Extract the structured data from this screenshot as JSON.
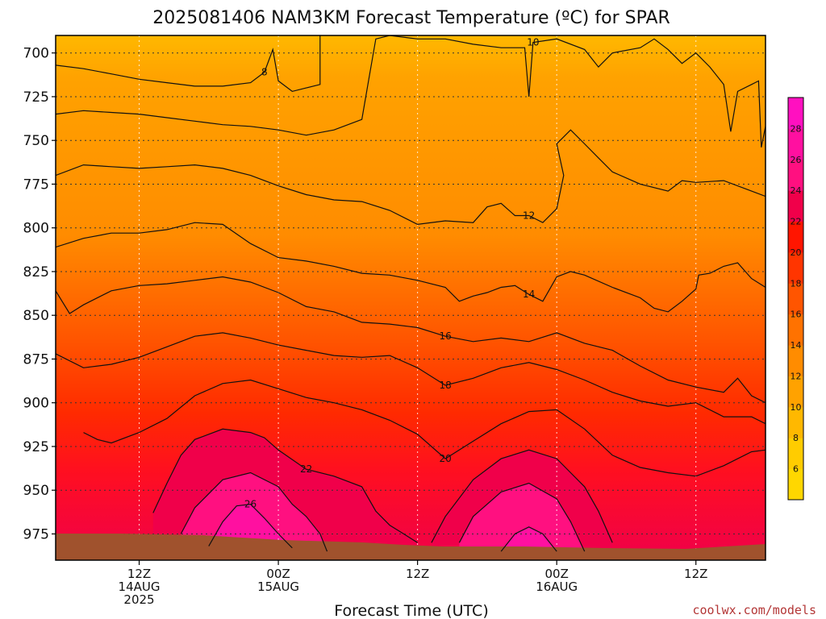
{
  "chart_data": {
    "type": "heatmap",
    "title": "2025081406 NAM3KM Forecast Temperature (ºC) for SPAR",
    "xlabel": "Forecast Time (UTC)",
    "ylabel": "",
    "y_ticks": [
      700,
      725,
      750,
      775,
      800,
      825,
      850,
      875,
      900,
      925,
      950,
      975
    ],
    "ylim": [
      690,
      990
    ],
    "x_range_hours": [
      6,
      57
    ],
    "x_ticks": [
      {
        "hour": 12,
        "lines": [
          "12Z",
          "14AUG",
          "2025"
        ]
      },
      {
        "hour": 22,
        "lines": [
          "00Z",
          "15AUG"
        ]
      },
      {
        "hour": 32,
        "lines": [
          "12Z"
        ]
      },
      {
        "hour": 42,
        "lines": [
          "00Z",
          "16AUG"
        ]
      },
      {
        "hour": 52,
        "lines": [
          "12Z"
        ]
      }
    ],
    "colorbar": {
      "levels": [
        4,
        6,
        8,
        10,
        12,
        14,
        16,
        18,
        20,
        22,
        24,
        26,
        28,
        30
      ],
      "tick_labels": [
        6,
        8,
        10,
        12,
        14,
        16,
        18,
        20,
        22,
        24,
        26,
        28
      ],
      "colors": [
        "#ffd700",
        "#ffcc00",
        "#ffb800",
        "#ffa200",
        "#ff8c00",
        "#ff7200",
        "#ff5500",
        "#ff3500",
        "#ff1500",
        "#f0004a",
        "#ff1080",
        "#ff10a0",
        "#ff10c0"
      ]
    },
    "contours": [
      {
        "value": 8,
        "label": "8",
        "points": [
          [
            6,
            707
          ],
          [
            8,
            709
          ],
          [
            10,
            712
          ],
          [
            12,
            715
          ],
          [
            14,
            717
          ],
          [
            16,
            719
          ],
          [
            18,
            719
          ],
          [
            20,
            717
          ],
          [
            21,
            711
          ],
          [
            21.6,
            698
          ],
          [
            22,
            716
          ],
          [
            23,
            722
          ],
          [
            24,
            720
          ],
          [
            25,
            718
          ],
          [
            25,
            690
          ]
        ]
      },
      {
        "value": 10,
        "label": "10",
        "points": [
          [
            6,
            735
          ],
          [
            8,
            733
          ],
          [
            10,
            734
          ],
          [
            12,
            735
          ],
          [
            14,
            737
          ],
          [
            16,
            739
          ],
          [
            18,
            741
          ],
          [
            20,
            742
          ],
          [
            22,
            744
          ],
          [
            24,
            747
          ],
          [
            26,
            744
          ],
          [
            28,
            738
          ],
          [
            28.5,
            715
          ],
          [
            29,
            692
          ],
          [
            30,
            690
          ],
          [
            32,
            692
          ],
          [
            34,
            692
          ],
          [
            36,
            695
          ],
          [
            38,
            697
          ],
          [
            39.7,
            697
          ],
          [
            40,
            725
          ],
          [
            40.3,
            694
          ],
          [
            42,
            692
          ],
          [
            44,
            698
          ],
          [
            45,
            708
          ],
          [
            46,
            700
          ],
          [
            48,
            697
          ],
          [
            49,
            692
          ],
          [
            50,
            698
          ],
          [
            51,
            706
          ],
          [
            52,
            700
          ],
          [
            53,
            708
          ],
          [
            54,
            718
          ],
          [
            54.5,
            745
          ],
          [
            55,
            722
          ],
          [
            56,
            718
          ],
          [
            56.5,
            716
          ],
          [
            56.7,
            754
          ],
          [
            57,
            742
          ]
        ]
      },
      {
        "value": 12,
        "label": "12",
        "points": [
          [
            6,
            770
          ],
          [
            8,
            764
          ],
          [
            10,
            765
          ],
          [
            12,
            766
          ],
          [
            14,
            765
          ],
          [
            16,
            764
          ],
          [
            18,
            766
          ],
          [
            20,
            770
          ],
          [
            22,
            776
          ],
          [
            24,
            781
          ],
          [
            26,
            784
          ],
          [
            28,
            785
          ],
          [
            30,
            790
          ],
          [
            32,
            798
          ],
          [
            34,
            796
          ],
          [
            36,
            797
          ],
          [
            37,
            788
          ],
          [
            38,
            786
          ],
          [
            39,
            793
          ],
          [
            40,
            793
          ],
          [
            41,
            797
          ],
          [
            42,
            789
          ],
          [
            42.5,
            770
          ],
          [
            42,
            752
          ],
          [
            43,
            744
          ],
          [
            44,
            752
          ],
          [
            45,
            760
          ],
          [
            46,
            768
          ],
          [
            48,
            775
          ],
          [
            50,
            779
          ],
          [
            51,
            773
          ],
          [
            52,
            774
          ],
          [
            54,
            773
          ],
          [
            56,
            779
          ],
          [
            57,
            782
          ]
        ]
      },
      {
        "value": 14,
        "label": "14",
        "points": [
          [
            6,
            811
          ],
          [
            8,
            806
          ],
          [
            10,
            803
          ],
          [
            12,
            803
          ],
          [
            14,
            801
          ],
          [
            16,
            797
          ],
          [
            18,
            798
          ],
          [
            20,
            809
          ],
          [
            22,
            817
          ],
          [
            24,
            819
          ],
          [
            26,
            822
          ],
          [
            28,
            826
          ],
          [
            30,
            827
          ],
          [
            32,
            830
          ],
          [
            34,
            834
          ],
          [
            35,
            842
          ],
          [
            36,
            839
          ],
          [
            37,
            837
          ],
          [
            38,
            834
          ],
          [
            39,
            833
          ],
          [
            40,
            838
          ],
          [
            41,
            842
          ],
          [
            42,
            828
          ],
          [
            43,
            825
          ],
          [
            44,
            827
          ],
          [
            46,
            834
          ],
          [
            48,
            840
          ],
          [
            49,
            846
          ],
          [
            50,
            848
          ],
          [
            51,
            842
          ],
          [
            52,
            835
          ],
          [
            52.2,
            827
          ],
          [
            53,
            826
          ],
          [
            54,
            822
          ],
          [
            55,
            820
          ],
          [
            56,
            829
          ],
          [
            57,
            834
          ]
        ]
      },
      {
        "value": 16,
        "label": "16",
        "points": [
          [
            6,
            836
          ],
          [
            7,
            849
          ],
          [
            8,
            844
          ],
          [
            10,
            836
          ],
          [
            12,
            833
          ],
          [
            14,
            832
          ],
          [
            16,
            830
          ],
          [
            18,
            828
          ],
          [
            20,
            831
          ],
          [
            22,
            837
          ],
          [
            24,
            845
          ],
          [
            26,
            848
          ],
          [
            28,
            854
          ],
          [
            30,
            855
          ],
          [
            32,
            857
          ],
          [
            34,
            862
          ],
          [
            36,
            865
          ],
          [
            38,
            863
          ],
          [
            40,
            865
          ],
          [
            42,
            860
          ],
          [
            44,
            866
          ],
          [
            46,
            870
          ],
          [
            48,
            879
          ],
          [
            50,
            887
          ],
          [
            52,
            891
          ],
          [
            54,
            894
          ],
          [
            55,
            886
          ],
          [
            56,
            896
          ],
          [
            57,
            900
          ]
        ]
      },
      {
        "value": 18,
        "label": "18",
        "points": [
          [
            6,
            872
          ],
          [
            8,
            880
          ],
          [
            10,
            878
          ],
          [
            12,
            874
          ],
          [
            14,
            868
          ],
          [
            16,
            862
          ],
          [
            18,
            860
          ],
          [
            20,
            863
          ],
          [
            22,
            867
          ],
          [
            24,
            870
          ],
          [
            26,
            873
          ],
          [
            28,
            874
          ],
          [
            30,
            873
          ],
          [
            32,
            880
          ],
          [
            34,
            890
          ],
          [
            36,
            886
          ],
          [
            38,
            880
          ],
          [
            40,
            877
          ],
          [
            42,
            881
          ],
          [
            44,
            887
          ],
          [
            46,
            894
          ],
          [
            48,
            899
          ],
          [
            50,
            902
          ],
          [
            52,
            900
          ],
          [
            54,
            908
          ],
          [
            56,
            908
          ],
          [
            57,
            912
          ]
        ]
      },
      {
        "value": 20,
        "label": "20",
        "points": [
          [
            8,
            917
          ],
          [
            9,
            921
          ],
          [
            10,
            923
          ],
          [
            12,
            917
          ],
          [
            14,
            909
          ],
          [
            16,
            896
          ],
          [
            18,
            889
          ],
          [
            20,
            887
          ],
          [
            22,
            892
          ],
          [
            24,
            897
          ],
          [
            26,
            900
          ],
          [
            28,
            904
          ],
          [
            30,
            910
          ],
          [
            32,
            918
          ],
          [
            34,
            932
          ],
          [
            36,
            922
          ],
          [
            38,
            912
          ],
          [
            40,
            905
          ],
          [
            42,
            904
          ],
          [
            44,
            915
          ],
          [
            46,
            930
          ],
          [
            48,
            937
          ],
          [
            50,
            940
          ],
          [
            52,
            942
          ],
          [
            54,
            936
          ],
          [
            56,
            928
          ],
          [
            57,
            927
          ]
        ]
      },
      {
        "value": 22,
        "label": "22",
        "points": [
          [
            13,
            963
          ],
          [
            14,
            946
          ],
          [
            15,
            930
          ],
          [
            16,
            921
          ],
          [
            18,
            915
          ],
          [
            20,
            917
          ],
          [
            21,
            920
          ],
          [
            22,
            927
          ],
          [
            24,
            938
          ],
          [
            26,
            942
          ],
          [
            28,
            948
          ],
          [
            29,
            962
          ],
          [
            30,
            970
          ],
          [
            31,
            975
          ],
          [
            32,
            980
          ]
        ]
      },
      {
        "value": 22,
        "label": "",
        "points": [
          [
            33,
            980
          ],
          [
            34,
            965
          ],
          [
            36,
            944
          ],
          [
            38,
            932
          ],
          [
            40,
            927
          ],
          [
            42,
            932
          ],
          [
            43,
            940
          ],
          [
            44,
            948
          ],
          [
            45,
            962
          ],
          [
            46,
            980
          ]
        ]
      },
      {
        "value": 24,
        "label": "",
        "points": [
          [
            15,
            975
          ],
          [
            16,
            960
          ],
          [
            18,
            944
          ],
          [
            20,
            940
          ],
          [
            22,
            948
          ],
          [
            23,
            958
          ],
          [
            24,
            965
          ],
          [
            25,
            975
          ],
          [
            25.5,
            985
          ]
        ]
      },
      {
        "value": 24,
        "label": "",
        "points": [
          [
            35,
            980
          ],
          [
            36,
            965
          ],
          [
            38,
            951
          ],
          [
            40,
            946
          ],
          [
            42,
            955
          ],
          [
            43,
            968
          ],
          [
            44,
            985
          ]
        ]
      },
      {
        "value": 26,
        "label": "26",
        "points": [
          [
            17,
            982
          ],
          [
            18,
            968
          ],
          [
            19,
            959
          ],
          [
            20,
            958
          ],
          [
            21,
            966
          ],
          [
            22,
            975
          ],
          [
            23,
            983
          ]
        ]
      },
      {
        "value": 26,
        "label": "",
        "points": [
          [
            38,
            985
          ],
          [
            39,
            975
          ],
          [
            40,
            971
          ],
          [
            41,
            975
          ],
          [
            42,
            985
          ]
        ]
      }
    ]
  },
  "credit": "coolwx.com/models"
}
